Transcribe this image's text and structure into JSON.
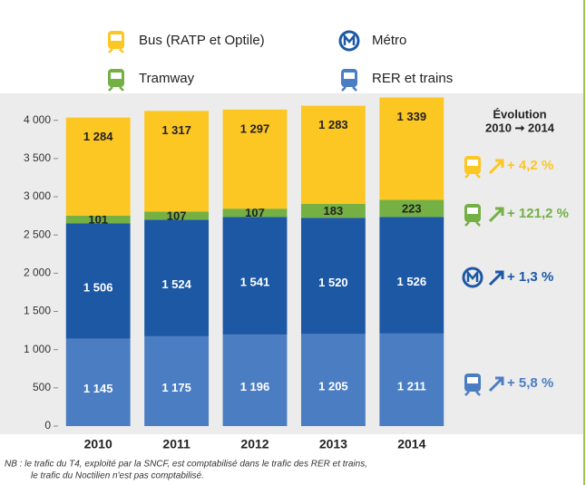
{
  "chart_data": {
    "type": "stacked_bar",
    "categories": [
      "2010",
      "2011",
      "2012",
      "2013",
      "2014"
    ],
    "series": [
      {
        "name": "RER et trains",
        "color": "#4b7dc3",
        "values": [
          1145,
          1175,
          1196,
          1205,
          1211
        ],
        "value_labels": [
          "1 145",
          "1 175",
          "1 196",
          "1 205",
          "1 211"
        ],
        "evolution": "+ 5,8 %"
      },
      {
        "name": "Métro",
        "color": "#1d58a5",
        "values": [
          1506,
          1524,
          1541,
          1520,
          1526
        ],
        "value_labels": [
          "1 506",
          "1 524",
          "1 541",
          "1 520",
          "1 526"
        ],
        "evolution": "+ 1,3 %"
      },
      {
        "name": "Tramway",
        "color": "#74b043",
        "values": [
          101,
          107,
          107,
          183,
          223
        ],
        "value_labels": [
          "101",
          "107",
          "107",
          "183",
          "223"
        ],
        "evolution": "+ 121,2 %"
      },
      {
        "name": "Bus (RATP et Optile)",
        "color": "#fcc623",
        "values": [
          1284,
          1317,
          1297,
          1283,
          1339
        ],
        "value_labels": [
          "1 284",
          "1 317",
          "1 297",
          "1 283",
          "1 339"
        ],
        "evolution": "+ 4,2 %"
      }
    ],
    "ylim": [
      0,
      4400
    ],
    "yticks": [
      0,
      500,
      {
        "value": 1000,
        "label": "1 000"
      },
      {
        "value": 1500,
        "label": "1 500"
      },
      {
        "value": 2000,
        "label": "2 000"
      },
      {
        "value": 2500,
        "label": "2 500"
      },
      {
        "value": 3000,
        "label": "3 000"
      },
      {
        "value": 3500,
        "label": "3 500"
      },
      {
        "value": 4000,
        "label": "4 000"
      }
    ],
    "evolution_title": "Évolution",
    "evolution_period": "2010 ➞ 2014",
    "footnote": [
      "NB : le trafic du T4, exploité par la SNCF, est comptabilisé dans le trafic des RER et trains,",
      "le trafic du Noctilien n'est pas comptabilisé."
    ]
  }
}
